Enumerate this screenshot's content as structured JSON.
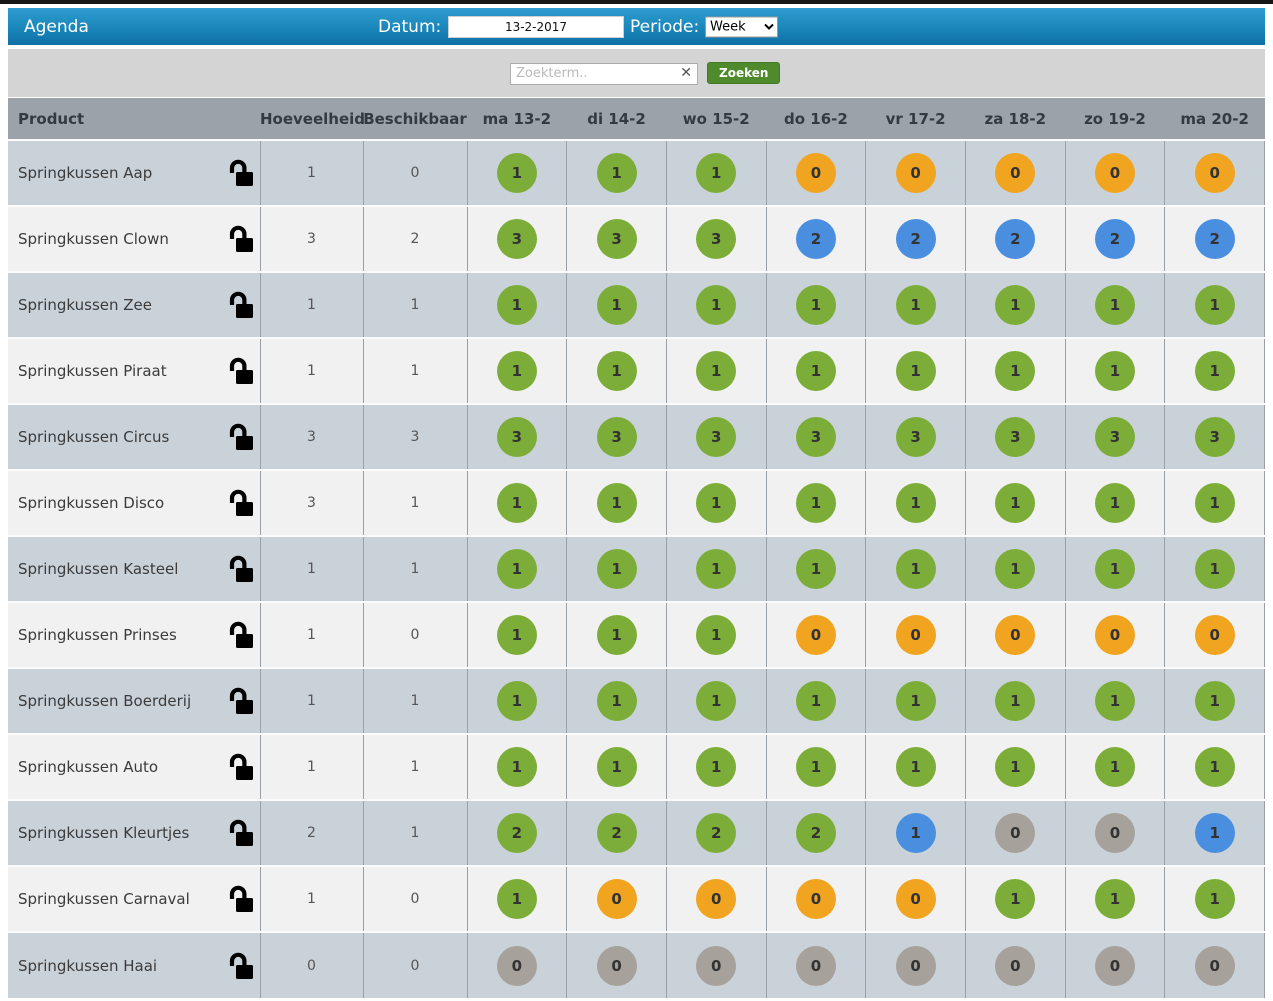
{
  "header": {
    "title": "Agenda",
    "datum_label": "Datum:",
    "datum_value": "13-2-2017",
    "periode_label": "Periode:",
    "periode_value": "Week"
  },
  "search": {
    "placeholder": "Zoekterm..",
    "clear_icon": "✕",
    "button": "Zoeken"
  },
  "colors": {
    "green": "#7dad39",
    "orange": "#f0a41f",
    "blue": "#4a8fdf",
    "gray": "#a6a19b"
  },
  "table": {
    "columns": [
      "Product",
      "Hoeveelheid",
      "Beschikbaar",
      "ma 13-2",
      "di 14-2",
      "wo 15-2",
      "do 16-2",
      "vr 17-2",
      "za 18-2",
      "zo 19-2",
      "ma 20-2"
    ],
    "rows": [
      {
        "product": "Springkussen Aap",
        "hoeveelheid": "1",
        "beschikbaar": "0",
        "days": [
          {
            "v": "1",
            "c": "green"
          },
          {
            "v": "1",
            "c": "green"
          },
          {
            "v": "1",
            "c": "green"
          },
          {
            "v": "0",
            "c": "orange"
          },
          {
            "v": "0",
            "c": "orange"
          },
          {
            "v": "0",
            "c": "orange"
          },
          {
            "v": "0",
            "c": "orange"
          },
          {
            "v": "0",
            "c": "orange"
          }
        ]
      },
      {
        "product": "Springkussen Clown",
        "hoeveelheid": "3",
        "beschikbaar": "2",
        "days": [
          {
            "v": "3",
            "c": "green"
          },
          {
            "v": "3",
            "c": "green"
          },
          {
            "v": "3",
            "c": "green"
          },
          {
            "v": "2",
            "c": "blue"
          },
          {
            "v": "2",
            "c": "blue"
          },
          {
            "v": "2",
            "c": "blue"
          },
          {
            "v": "2",
            "c": "blue"
          },
          {
            "v": "2",
            "c": "blue"
          }
        ]
      },
      {
        "product": "Springkussen Zee",
        "hoeveelheid": "1",
        "beschikbaar": "1",
        "days": [
          {
            "v": "1",
            "c": "green"
          },
          {
            "v": "1",
            "c": "green"
          },
          {
            "v": "1",
            "c": "green"
          },
          {
            "v": "1",
            "c": "green"
          },
          {
            "v": "1",
            "c": "green"
          },
          {
            "v": "1",
            "c": "green"
          },
          {
            "v": "1",
            "c": "green"
          },
          {
            "v": "1",
            "c": "green"
          }
        ]
      },
      {
        "product": "Springkussen Piraat",
        "hoeveelheid": "1",
        "beschikbaar": "1",
        "days": [
          {
            "v": "1",
            "c": "green"
          },
          {
            "v": "1",
            "c": "green"
          },
          {
            "v": "1",
            "c": "green"
          },
          {
            "v": "1",
            "c": "green"
          },
          {
            "v": "1",
            "c": "green"
          },
          {
            "v": "1",
            "c": "green"
          },
          {
            "v": "1",
            "c": "green"
          },
          {
            "v": "1",
            "c": "green"
          }
        ]
      },
      {
        "product": "Springkussen Circus",
        "hoeveelheid": "3",
        "beschikbaar": "3",
        "days": [
          {
            "v": "3",
            "c": "green"
          },
          {
            "v": "3",
            "c": "green"
          },
          {
            "v": "3",
            "c": "green"
          },
          {
            "v": "3",
            "c": "green"
          },
          {
            "v": "3",
            "c": "green"
          },
          {
            "v": "3",
            "c": "green"
          },
          {
            "v": "3",
            "c": "green"
          },
          {
            "v": "3",
            "c": "green"
          }
        ]
      },
      {
        "product": "Springkussen Disco",
        "hoeveelheid": "3",
        "beschikbaar": "1",
        "days": [
          {
            "v": "1",
            "c": "green"
          },
          {
            "v": "1",
            "c": "green"
          },
          {
            "v": "1",
            "c": "green"
          },
          {
            "v": "1",
            "c": "green"
          },
          {
            "v": "1",
            "c": "green"
          },
          {
            "v": "1",
            "c": "green"
          },
          {
            "v": "1",
            "c": "green"
          },
          {
            "v": "1",
            "c": "green"
          }
        ]
      },
      {
        "product": "Springkussen Kasteel",
        "hoeveelheid": "1",
        "beschikbaar": "1",
        "days": [
          {
            "v": "1",
            "c": "green"
          },
          {
            "v": "1",
            "c": "green"
          },
          {
            "v": "1",
            "c": "green"
          },
          {
            "v": "1",
            "c": "green"
          },
          {
            "v": "1",
            "c": "green"
          },
          {
            "v": "1",
            "c": "green"
          },
          {
            "v": "1",
            "c": "green"
          },
          {
            "v": "1",
            "c": "green"
          }
        ]
      },
      {
        "product": "Springkussen Prinses",
        "hoeveelheid": "1",
        "beschikbaar": "0",
        "days": [
          {
            "v": "1",
            "c": "green"
          },
          {
            "v": "1",
            "c": "green"
          },
          {
            "v": "1",
            "c": "green"
          },
          {
            "v": "0",
            "c": "orange"
          },
          {
            "v": "0",
            "c": "orange"
          },
          {
            "v": "0",
            "c": "orange"
          },
          {
            "v": "0",
            "c": "orange"
          },
          {
            "v": "0",
            "c": "orange"
          }
        ]
      },
      {
        "product": "Springkussen Boerderij",
        "hoeveelheid": "1",
        "beschikbaar": "1",
        "days": [
          {
            "v": "1",
            "c": "green"
          },
          {
            "v": "1",
            "c": "green"
          },
          {
            "v": "1",
            "c": "green"
          },
          {
            "v": "1",
            "c": "green"
          },
          {
            "v": "1",
            "c": "green"
          },
          {
            "v": "1",
            "c": "green"
          },
          {
            "v": "1",
            "c": "green"
          },
          {
            "v": "1",
            "c": "green"
          }
        ]
      },
      {
        "product": "Springkussen Auto",
        "hoeveelheid": "1",
        "beschikbaar": "1",
        "days": [
          {
            "v": "1",
            "c": "green"
          },
          {
            "v": "1",
            "c": "green"
          },
          {
            "v": "1",
            "c": "green"
          },
          {
            "v": "1",
            "c": "green"
          },
          {
            "v": "1",
            "c": "green"
          },
          {
            "v": "1",
            "c": "green"
          },
          {
            "v": "1",
            "c": "green"
          },
          {
            "v": "1",
            "c": "green"
          }
        ]
      },
      {
        "product": "Springkussen Kleurtjes",
        "hoeveelheid": "2",
        "beschikbaar": "1",
        "days": [
          {
            "v": "2",
            "c": "green"
          },
          {
            "v": "2",
            "c": "green"
          },
          {
            "v": "2",
            "c": "green"
          },
          {
            "v": "2",
            "c": "green"
          },
          {
            "v": "1",
            "c": "blue"
          },
          {
            "v": "0",
            "c": "gray"
          },
          {
            "v": "0",
            "c": "gray"
          },
          {
            "v": "1",
            "c": "blue"
          }
        ]
      },
      {
        "product": "Springkussen Carnaval",
        "hoeveelheid": "1",
        "beschikbaar": "0",
        "days": [
          {
            "v": "1",
            "c": "green"
          },
          {
            "v": "0",
            "c": "orange"
          },
          {
            "v": "0",
            "c": "orange"
          },
          {
            "v": "0",
            "c": "orange"
          },
          {
            "v": "0",
            "c": "orange"
          },
          {
            "v": "1",
            "c": "green"
          },
          {
            "v": "1",
            "c": "green"
          },
          {
            "v": "1",
            "c": "green"
          }
        ]
      },
      {
        "product": "Springkussen Haai",
        "hoeveelheid": "0",
        "beschikbaar": "0",
        "days": [
          {
            "v": "0",
            "c": "gray"
          },
          {
            "v": "0",
            "c": "gray"
          },
          {
            "v": "0",
            "c": "gray"
          },
          {
            "v": "0",
            "c": "gray"
          },
          {
            "v": "0",
            "c": "gray"
          },
          {
            "v": "0",
            "c": "gray"
          },
          {
            "v": "0",
            "c": "gray"
          },
          {
            "v": "0",
            "c": "gray"
          }
        ]
      }
    ]
  }
}
